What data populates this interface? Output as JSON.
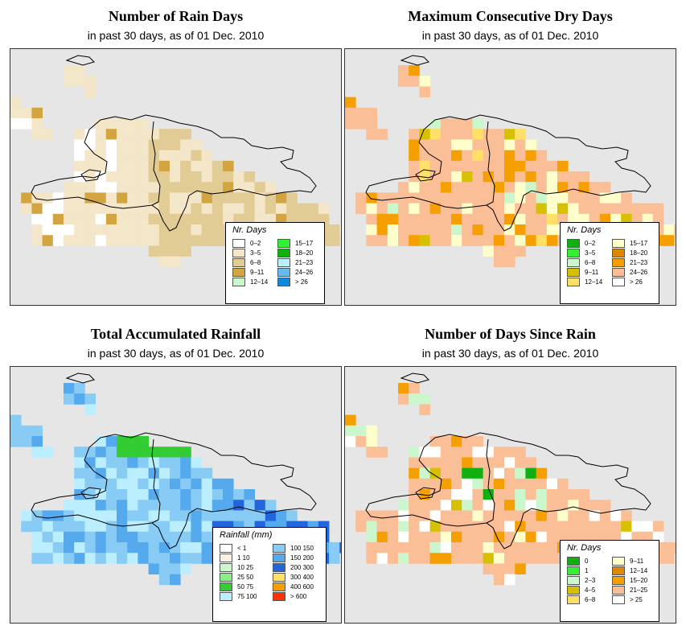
{
  "panels": [
    {
      "id": "rain-days",
      "title": "Number of Rain Days",
      "subtitle": "in past 30 days, as of  01 Dec. 2010",
      "legend_title": "Nr. Days",
      "legend": [
        {
          "label": "0–2",
          "color": "#ffffff"
        },
        {
          "label": "3–5",
          "color": "#f3e6c9"
        },
        {
          "label": "6–8",
          "color": "#e2cc95"
        },
        {
          "label": "9–11",
          "color": "#d3a540"
        },
        {
          "label": "12–14",
          "color": "#ccf7cc"
        },
        {
          "label": "15–17",
          "color": "#33f033"
        },
        {
          "label": "18–20",
          "color": "#11b011"
        },
        {
          "label": "21–23",
          "color": "#bbeeff"
        },
        {
          "label": "24–26",
          "color": "#66bbee"
        },
        {
          "label": "> 26",
          "color": "#1188dd"
        }
      ]
    },
    {
      "id": "dry-days",
      "title": "Maximum Consecutive Dry Days",
      "subtitle": "in past 30 days, as of  01 Dec. 2010",
      "legend_title": "Nr. Days",
      "legend": [
        {
          "label": "0–2",
          "color": "#11b011"
        },
        {
          "label": "3–5",
          "color": "#33f033"
        },
        {
          "label": "6–8",
          "color": "#ccf7cc"
        },
        {
          "label": "9–11",
          "color": "#d6c000"
        },
        {
          "label": "12–14",
          "color": "#ffe066"
        },
        {
          "label": "15–17",
          "color": "#ffffcc"
        },
        {
          "label": "18–20",
          "color": "#dd8800"
        },
        {
          "label": "21–23",
          "color": "#f5a000"
        },
        {
          "label": "24–26",
          "color": "#fbbf98"
        },
        {
          "label": "> 26",
          "color": "#ffffff"
        }
      ]
    },
    {
      "id": "rainfall",
      "title": "Total Accumulated Rainfall",
      "subtitle": "in past 30 days, as of  01 Dec. 2010",
      "legend_title": "Rainfall (mm)",
      "legend": [
        {
          "label": "< 1",
          "color": "#ffffff"
        },
        {
          "label": "1   10",
          "color": "#fcf0e2"
        },
        {
          "label": "10   25",
          "color": "#ccf7cc"
        },
        {
          "label": "25   50",
          "color": "#88ee88"
        },
        {
          "label": "50   75",
          "color": "#33cc33"
        },
        {
          "label": "75   100",
          "color": "#bbeeff"
        },
        {
          "label": "100   150",
          "color": "#88ccf5"
        },
        {
          "label": "150   200",
          "color": "#55aaee"
        },
        {
          "label": "200   300",
          "color": "#2266dd"
        },
        {
          "label": "300   400",
          "color": "#ffe066"
        },
        {
          "label": "400   600",
          "color": "#f5a000"
        },
        {
          "label": "> 600",
          "color": "#ff3300"
        }
      ]
    },
    {
      "id": "since-rain",
      "title": "Number of Days Since Rain",
      "subtitle": "in past 30 days, as of  01 Dec. 2010",
      "legend_title": "Nr. Days",
      "legend": [
        {
          "label": "0",
          "color": "#11b011"
        },
        {
          "label": "1",
          "color": "#33f033"
        },
        {
          "label": "2–3",
          "color": "#ccf7cc"
        },
        {
          "label": "4–5",
          "color": "#d6c000"
        },
        {
          "label": "6–8",
          "color": "#ffe066"
        },
        {
          "label": "9–11",
          "color": "#ffffcc"
        },
        {
          "label": "12–14",
          "color": "#dd8800"
        },
        {
          "label": "15–20",
          "color": "#f5a000"
        },
        {
          "label": "21–25",
          "color": "#fbbf98"
        },
        {
          "label": "> 25",
          "color": "#ffffff"
        }
      ]
    }
  ]
}
